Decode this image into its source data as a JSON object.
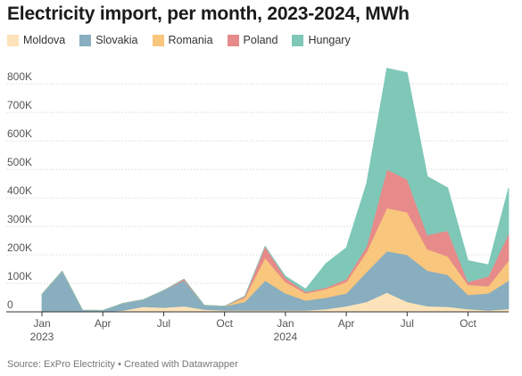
{
  "chart_data": {
    "type": "area",
    "stacked": true,
    "title": "Electricity import, per month, 2023-2024, MWh",
    "source_note": "Source: ExPro Electricity • Created with Datawrapper",
    "ylim": [
      0,
      860000
    ],
    "y_ticks": [
      0,
      100000,
      200000,
      300000,
      400000,
      500000,
      600000,
      700000,
      800000
    ],
    "y_tick_labels": [
      "0",
      "100K",
      "200K",
      "300K",
      "400K",
      "500K",
      "600K",
      "700K",
      "800K"
    ],
    "x_tick_labels": [
      {
        "index": 0,
        "label": "Jan",
        "sub": "2023"
      },
      {
        "index": 3,
        "label": "Apr",
        "sub": ""
      },
      {
        "index": 6,
        "label": "Jul",
        "sub": ""
      },
      {
        "index": 9,
        "label": "Oct",
        "sub": ""
      },
      {
        "index": 12,
        "label": "Jan",
        "sub": "2024"
      },
      {
        "index": 15,
        "label": "Apr",
        "sub": ""
      },
      {
        "index": 18,
        "label": "Jul",
        "sub": ""
      },
      {
        "index": 21,
        "label": "Oct",
        "sub": ""
      }
    ],
    "x": [
      "2023-01",
      "2023-02",
      "2023-03",
      "2023-04",
      "2023-05",
      "2023-06",
      "2023-07",
      "2023-08",
      "2023-09",
      "2023-10",
      "2023-11",
      "2023-12",
      "2024-01",
      "2024-02",
      "2024-03",
      "2024-04",
      "2024-05",
      "2024-06",
      "2024-07",
      "2024-08",
      "2024-09",
      "2024-10",
      "2024-11",
      "2024-12"
    ],
    "series": [
      {
        "name": "Moldova",
        "color": "#fde3b9",
        "values": [
          2000,
          3000,
          1000,
          0,
          5000,
          18000,
          15000,
          20000,
          8000,
          5000,
          5000,
          5000,
          5000,
          5000,
          10000,
          20000,
          35000,
          68000,
          35000,
          20000,
          18000,
          10000,
          5000,
          10000
        ]
      },
      {
        "name": "Slovakia",
        "color": "#88aebf",
        "values": [
          60000,
          140000,
          5000,
          5000,
          25000,
          25000,
          60000,
          90000,
          15000,
          15000,
          30000,
          105000,
          60000,
          35000,
          40000,
          45000,
          105000,
          145000,
          165000,
          125000,
          112000,
          50000,
          60000,
          100000
        ]
      },
      {
        "name": "Romania",
        "color": "#f8c67c",
        "values": [
          0,
          0,
          0,
          0,
          0,
          0,
          0,
          0,
          0,
          0,
          15000,
          80000,
          40000,
          25000,
          30000,
          40000,
          70000,
          152000,
          150000,
          75000,
          65000,
          35000,
          25000,
          70000
        ]
      },
      {
        "name": "Poland",
        "color": "#e68b8a",
        "values": [
          0,
          0,
          0,
          0,
          0,
          0,
          0,
          5000,
          0,
          0,
          5000,
          40000,
          15000,
          5000,
          5000,
          10000,
          20000,
          135000,
          115000,
          50000,
          90000,
          10000,
          35000,
          95000
        ]
      },
      {
        "name": "Hungary",
        "color": "#7fc8b8",
        "values": [
          0,
          0,
          0,
          0,
          0,
          0,
          0,
          0,
          0,
          0,
          0,
          0,
          5000,
          10000,
          85000,
          110000,
          220000,
          355000,
          375000,
          205000,
          150000,
          75000,
          40000,
          160000
        ]
      }
    ]
  }
}
